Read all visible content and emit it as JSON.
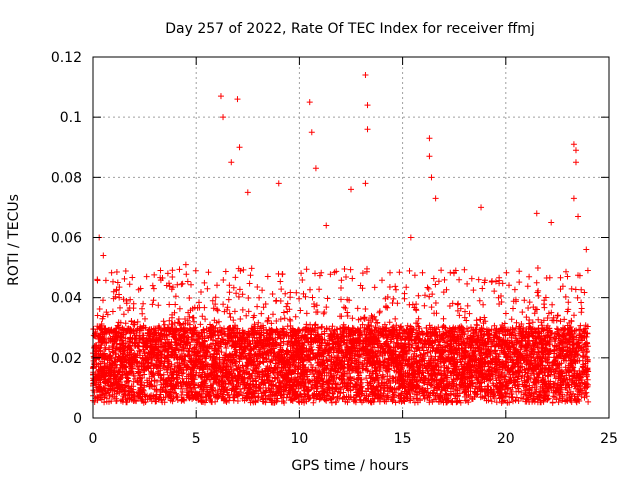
{
  "chart_data": {
    "type": "scatter",
    "title": "Day 257 of 2022, Rate Of TEC Index for receiver ffmj",
    "xlabel": "GPS time / hours",
    "ylabel": "ROTI / TECUs",
    "xlim": [
      0,
      25
    ],
    "ylim": [
      0,
      0.12
    ],
    "x_ticks": [
      0,
      5,
      10,
      15,
      20,
      25
    ],
    "x_tick_labels": [
      "0",
      "5",
      "10",
      "15",
      "20",
      "25"
    ],
    "y_ticks": [
      0,
      0.02,
      0.04,
      0.06,
      0.08,
      0.1,
      0.12
    ],
    "y_tick_labels": [
      "0",
      "0.02",
      "0.04",
      "0.06",
      "0.08",
      "0.1",
      "0.12"
    ],
    "grid": true,
    "marker": "+",
    "color": "#ff0000",
    "x_range_of_data": [
      0,
      24
    ],
    "typical_range": [
      0.005,
      0.03
    ],
    "peaks": [
      {
        "x": 0.3,
        "y": 0.06
      },
      {
        "x": 0.5,
        "y": 0.054
      },
      {
        "x": 2.6,
        "y": 0.047
      },
      {
        "x": 4.5,
        "y": 0.051
      },
      {
        "x": 6.2,
        "y": 0.107
      },
      {
        "x": 6.3,
        "y": 0.1
      },
      {
        "x": 6.7,
        "y": 0.085
      },
      {
        "x": 7.0,
        "y": 0.106
      },
      {
        "x": 7.1,
        "y": 0.09
      },
      {
        "x": 7.5,
        "y": 0.075
      },
      {
        "x": 9.0,
        "y": 0.078
      },
      {
        "x": 10.5,
        "y": 0.105
      },
      {
        "x": 10.6,
        "y": 0.095
      },
      {
        "x": 10.8,
        "y": 0.083
      },
      {
        "x": 11.3,
        "y": 0.064
      },
      {
        "x": 12.5,
        "y": 0.076
      },
      {
        "x": 13.2,
        "y": 0.114
      },
      {
        "x": 13.3,
        "y": 0.104
      },
      {
        "x": 13.3,
        "y": 0.096
      },
      {
        "x": 13.2,
        "y": 0.078
      },
      {
        "x": 15.4,
        "y": 0.06
      },
      {
        "x": 16.3,
        "y": 0.093
      },
      {
        "x": 16.3,
        "y": 0.087
      },
      {
        "x": 16.4,
        "y": 0.08
      },
      {
        "x": 16.6,
        "y": 0.073
      },
      {
        "x": 18.8,
        "y": 0.07
      },
      {
        "x": 21.5,
        "y": 0.068
      },
      {
        "x": 22.2,
        "y": 0.065
      },
      {
        "x": 23.3,
        "y": 0.091
      },
      {
        "x": 23.4,
        "y": 0.089
      },
      {
        "x": 23.4,
        "y": 0.085
      },
      {
        "x": 23.3,
        "y": 0.073
      },
      {
        "x": 23.5,
        "y": 0.067
      },
      {
        "x": 23.9,
        "y": 0.056
      }
    ]
  }
}
